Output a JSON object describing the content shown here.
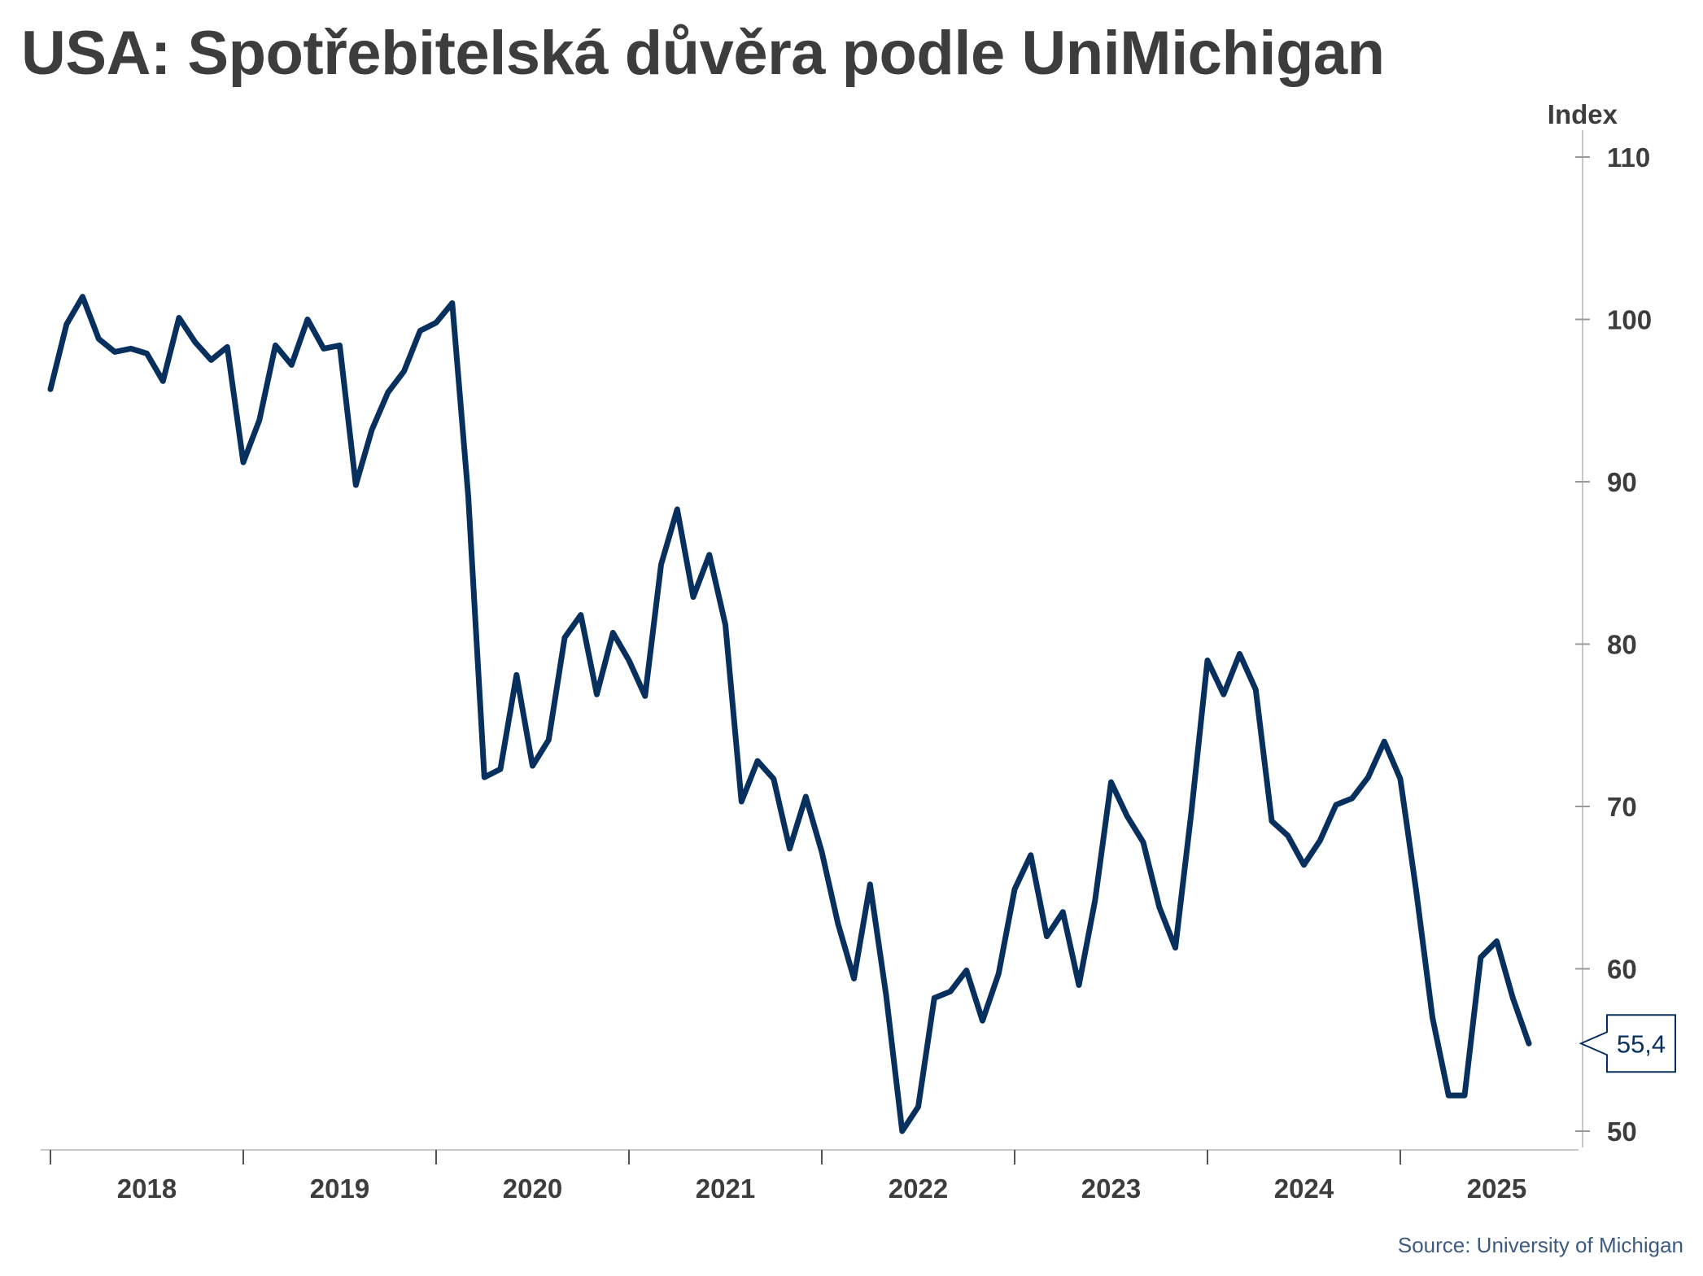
{
  "title": "USA: Spotřebitelská důvěra podle UniMichigan",
  "source": "Source: University of Michigan",
  "chart_data": {
    "type": "line",
    "title": "USA: Spotřebitelská důvěra podle UniMichigan",
    "ylabel": "Index",
    "xlabel": "",
    "ylim": [
      49,
      111
    ],
    "y_ticks": [
      50,
      60,
      70,
      80,
      90,
      100,
      110
    ],
    "x_ticks": [
      "2018",
      "2019",
      "2020",
      "2021",
      "2022",
      "2023",
      "2024",
      "2025"
    ],
    "grid": false,
    "line_color": "#08305e",
    "last_value_label": "55,4",
    "series": [
      {
        "x": [
          "2018-01",
          "2018-02",
          "2018-03",
          "2018-04",
          "2018-05",
          "2018-06",
          "2018-07",
          "2018-08",
          "2018-09",
          "2018-10",
          "2018-11",
          "2018-12",
          "2019-01",
          "2019-02",
          "2019-03",
          "2019-04",
          "2019-05",
          "2019-06",
          "2019-07",
          "2019-08",
          "2019-09",
          "2019-10",
          "2019-11",
          "2019-12",
          "2020-01",
          "2020-02",
          "2020-03",
          "2020-04",
          "2020-05",
          "2020-06",
          "2020-07",
          "2020-08",
          "2020-09",
          "2020-10",
          "2020-11",
          "2020-12",
          "2021-01",
          "2021-02",
          "2021-03",
          "2021-04",
          "2021-05",
          "2021-06",
          "2021-07",
          "2021-08",
          "2021-09",
          "2021-10",
          "2021-11",
          "2021-12",
          "2022-01",
          "2022-02",
          "2022-03",
          "2022-04",
          "2022-05",
          "2022-06",
          "2022-07",
          "2022-08",
          "2022-09",
          "2022-10",
          "2022-11",
          "2022-12",
          "2023-01",
          "2023-02",
          "2023-03",
          "2023-04",
          "2023-05",
          "2023-06",
          "2023-07",
          "2023-08",
          "2023-09",
          "2023-10",
          "2023-11",
          "2023-12",
          "2024-01",
          "2024-02",
          "2024-03",
          "2024-04",
          "2024-05",
          "2024-06",
          "2024-07",
          "2024-08",
          "2024-09",
          "2024-10",
          "2024-11",
          "2024-12",
          "2025-01",
          "2025-02",
          "2025-03",
          "2025-04",
          "2025-05",
          "2025-06",
          "2025-07",
          "2025-08",
          "2025-09"
        ],
        "values": [
          95.7,
          99.7,
          101.4,
          98.8,
          98.0,
          98.2,
          97.9,
          96.2,
          100.1,
          98.6,
          97.5,
          98.3,
          91.2,
          93.8,
          98.4,
          97.2,
          100.0,
          98.2,
          98.4,
          89.8,
          93.2,
          95.5,
          96.8,
          99.3,
          99.8,
          101.0,
          89.1,
          71.8,
          72.3,
          78.1,
          72.5,
          74.1,
          80.4,
          81.8,
          76.9,
          80.7,
          79.0,
          76.8,
          84.9,
          88.3,
          82.9,
          85.5,
          81.2,
          70.3,
          72.8,
          71.7,
          67.4,
          70.6,
          67.2,
          62.8,
          59.4,
          65.2,
          58.4,
          50.0,
          51.5,
          58.2,
          58.6,
          59.9,
          56.8,
          59.7,
          64.9,
          67.0,
          62.0,
          63.5,
          59.0,
          64.2,
          71.5,
          69.4,
          67.8,
          63.8,
          61.3,
          69.7,
          79.0,
          76.9,
          79.4,
          77.2,
          69.1,
          68.2,
          66.4,
          67.9,
          70.1,
          70.5,
          71.8,
          74.0,
          71.7,
          64.7,
          57.0,
          52.2,
          52.2,
          60.7,
          61.7,
          58.2,
          55.4
        ]
      }
    ]
  }
}
